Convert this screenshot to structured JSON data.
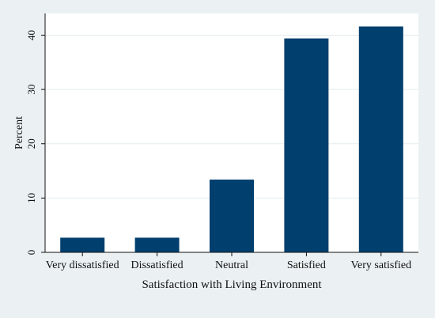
{
  "chart_data": {
    "type": "bar",
    "title": "",
    "xlabel": "Satisfaction with Living Environment",
    "ylabel": "Percent",
    "categories": [
      "Very dissatisfied",
      "Dissatisfied",
      "Neutral",
      "Satisfied",
      "Very satisfied"
    ],
    "values": [
      2.7,
      2.7,
      13.4,
      39.4,
      41.6
    ],
    "ylim": [
      0,
      44
    ],
    "yticks": [
      "0",
      "10",
      "20",
      "30",
      "40"
    ],
    "grid": true,
    "colors": {
      "bar": "#003f6e",
      "grid": "#e3ecef",
      "outer_background": "#ebf1f3",
      "plot_background": "#ffffff",
      "axis": "#111111"
    }
  }
}
